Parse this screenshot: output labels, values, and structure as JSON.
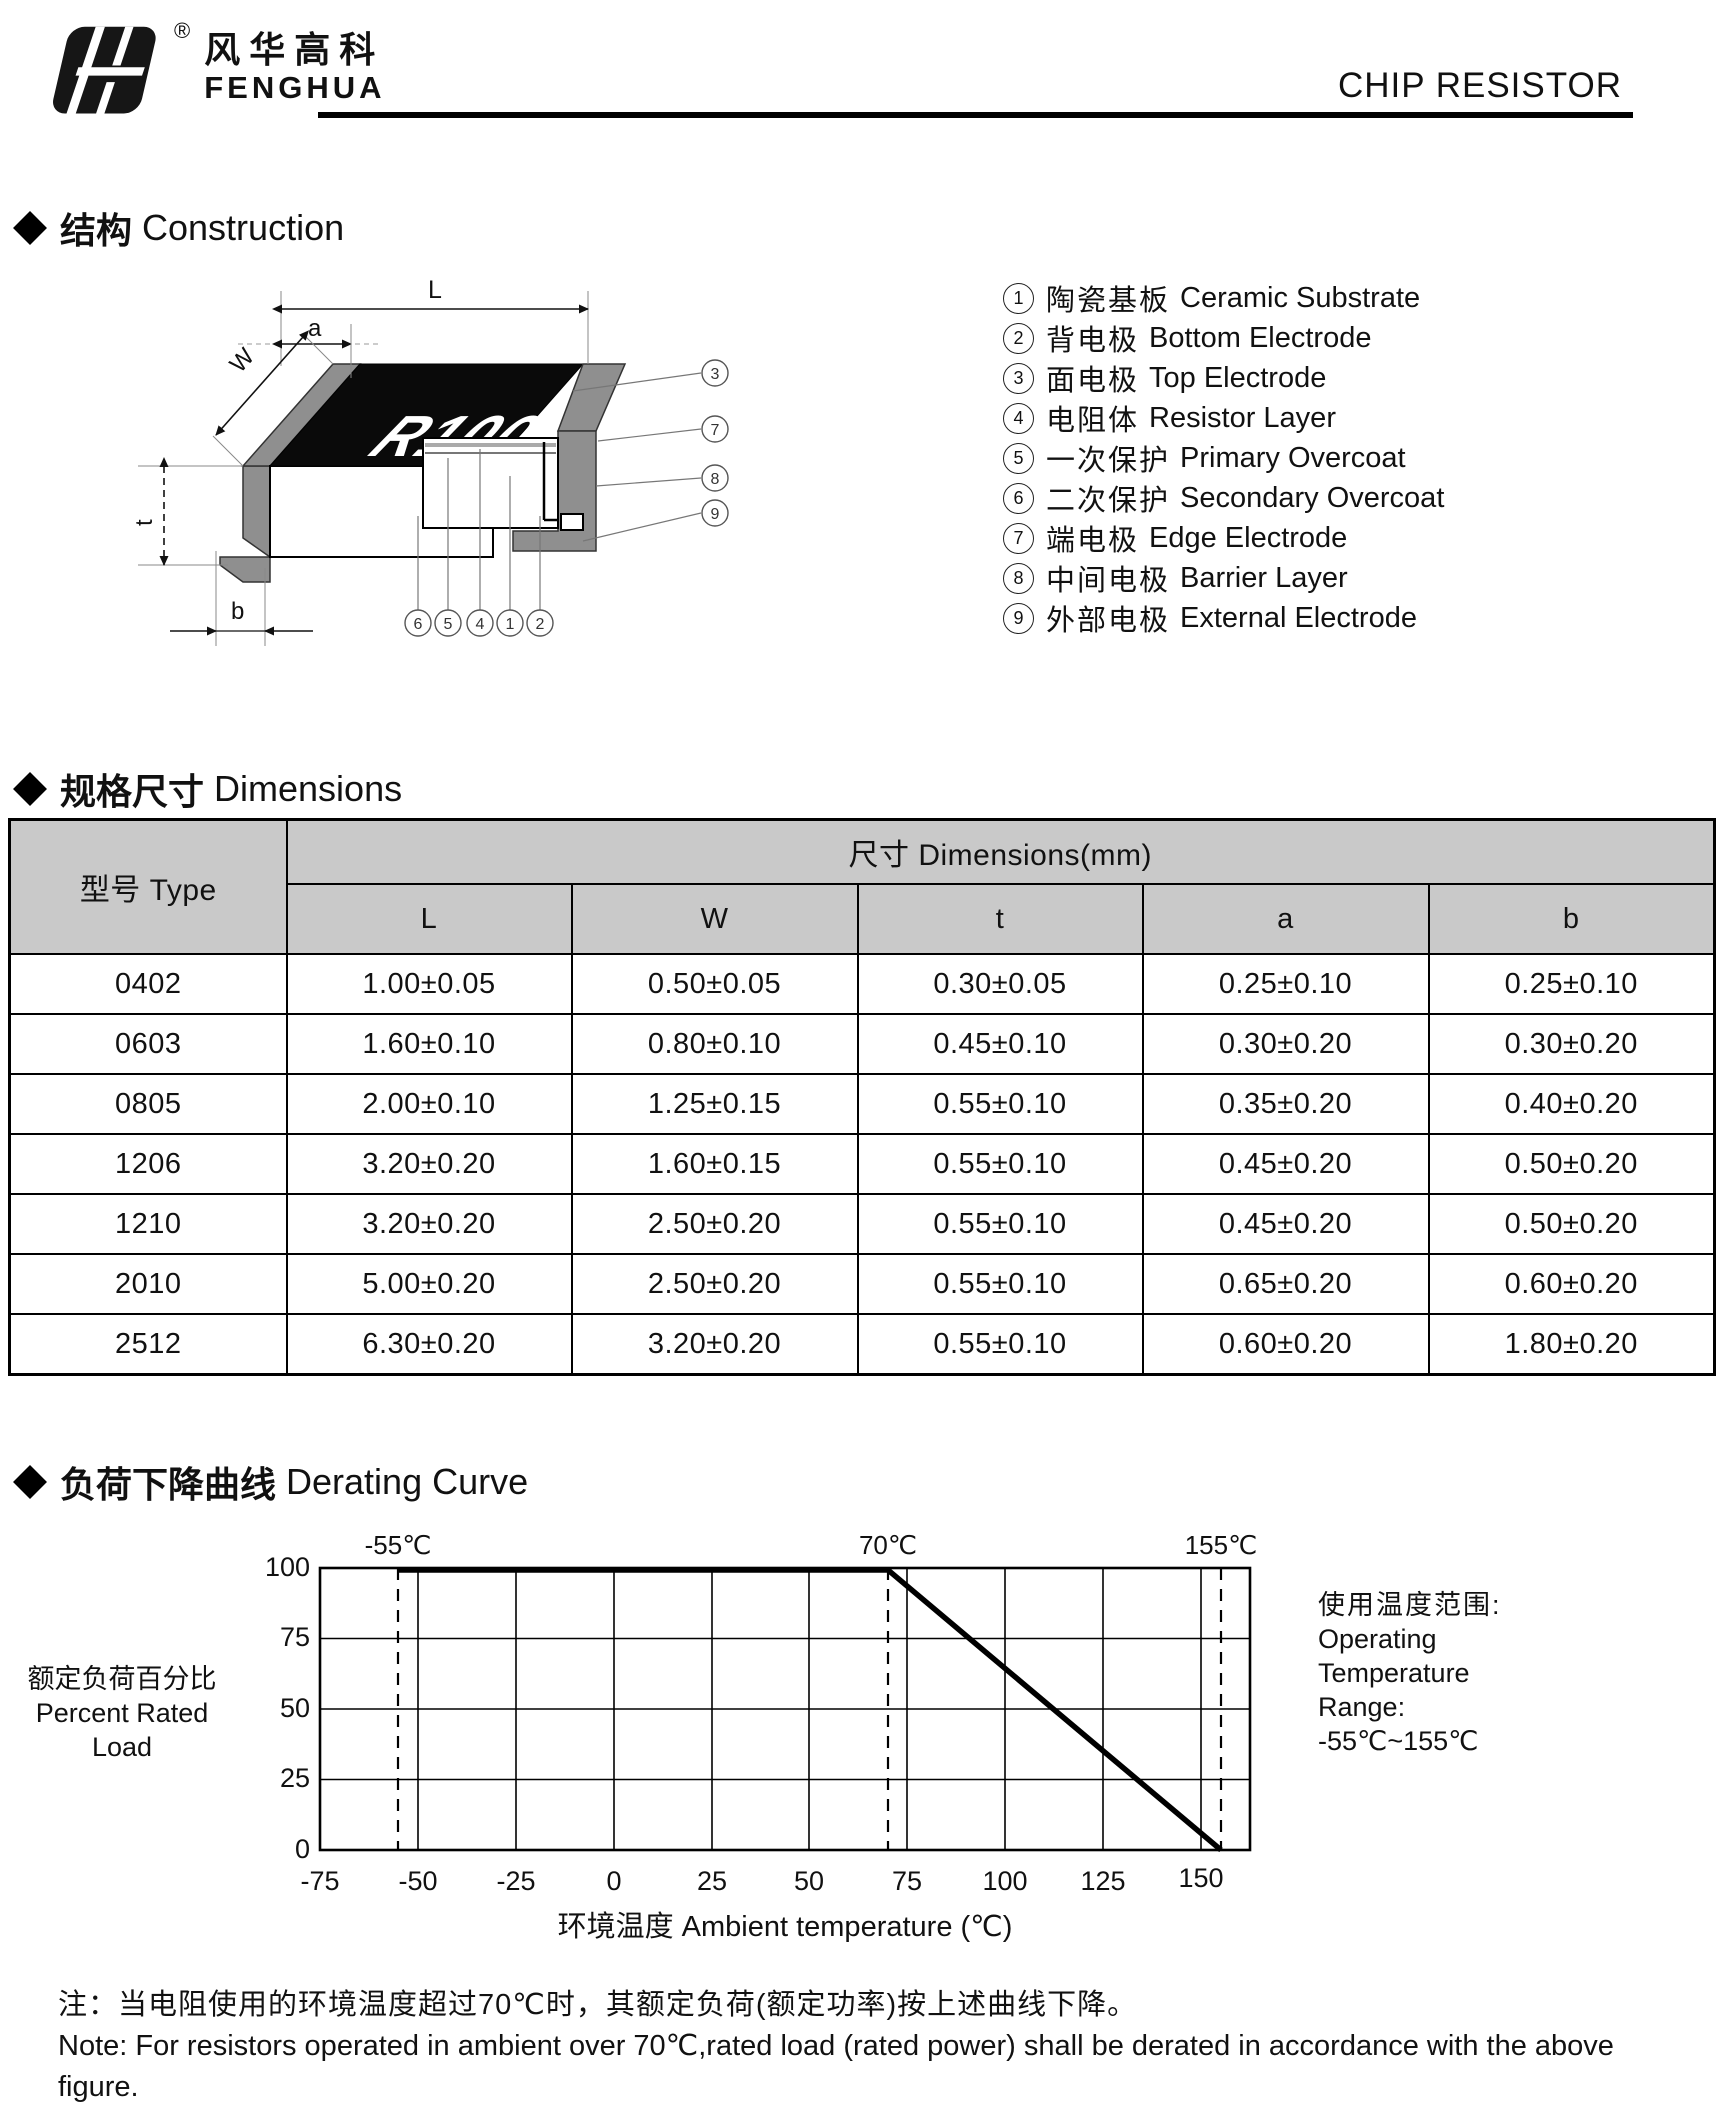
{
  "header": {
    "brand_zh": "风华高科",
    "brand_en": "FENGHUA",
    "registered": "®",
    "doc_title": "CHIP RESISTOR"
  },
  "construction": {
    "title_zh": "结构",
    "title_en": "Construction",
    "chip_marking": "R100",
    "dims": {
      "L": "L",
      "a": "a",
      "W": "W",
      "t": "t",
      "b": "b"
    },
    "legend": [
      {
        "num": "1",
        "zh": "陶瓷基板",
        "en": "Ceramic Substrate"
      },
      {
        "num": "2",
        "zh": "背电极",
        "en": "Bottom Electrode"
      },
      {
        "num": "3",
        "zh": "面电极",
        "en": "Top Electrode"
      },
      {
        "num": "4",
        "zh": "电阻体",
        "en": "Resistor Layer"
      },
      {
        "num": "5",
        "zh": "一次保护",
        "en": "Primary Overcoat"
      },
      {
        "num": "6",
        "zh": "二次保护",
        "en": "Secondary Overcoat"
      },
      {
        "num": "7",
        "zh": "端电极",
        "en": "Edge Electrode"
      },
      {
        "num": "8",
        "zh": "中间电极",
        "en": "Barrier Layer"
      },
      {
        "num": "9",
        "zh": "外部电极",
        "en": "External Electrode"
      }
    ],
    "callouts_right": [
      "3",
      "7",
      "8",
      "9"
    ],
    "callouts_bottom": [
      "6",
      "5",
      "4",
      "1",
      "2"
    ]
  },
  "dimensions_table": {
    "title_zh": "规格尺寸",
    "title_en": "Dimensions",
    "col_type": "型号 Type",
    "col_group": "尺寸 Dimensions(mm)",
    "sub_cols": [
      "L",
      "W",
      "t",
      "a",
      "b"
    ],
    "rows": [
      {
        "type": "0402",
        "values": [
          "1.00±0.05",
          "0.50±0.05",
          "0.30±0.05",
          "0.25±0.10",
          "0.25±0.10"
        ]
      },
      {
        "type": "0603",
        "values": [
          "1.60±0.10",
          "0.80±0.10",
          "0.45±0.10",
          "0.30±0.20",
          "0.30±0.20"
        ]
      },
      {
        "type": "0805",
        "values": [
          "2.00±0.10",
          "1.25±0.15",
          "0.55±0.10",
          "0.35±0.20",
          "0.40±0.20"
        ]
      },
      {
        "type": "1206",
        "values": [
          "3.20±0.20",
          "1.60±0.15",
          "0.55±0.10",
          "0.45±0.20",
          "0.50±0.20"
        ]
      },
      {
        "type": "1210",
        "values": [
          "3.20±0.20",
          "2.50±0.20",
          "0.55±0.10",
          "0.45±0.20",
          "0.50±0.20"
        ]
      },
      {
        "type": "2010",
        "values": [
          "5.00±0.20",
          "2.50±0.20",
          "0.55±0.10",
          "0.65±0.20",
          "0.60±0.20"
        ]
      },
      {
        "type": "2512",
        "values": [
          "6.30±0.20",
          "3.20±0.20",
          "0.55±0.10",
          "0.60±0.20",
          "1.80±0.20"
        ]
      }
    ]
  },
  "derating": {
    "title_zh": "负荷下降曲线",
    "title_en": "Derating Curve",
    "ylabel_zh": "额定负荷百分比",
    "ylabel_en": "Percent Rated Load",
    "xlabel": "环境温度 Ambient temperature (℃)",
    "marker_labels": [
      "-55℃",
      "70℃",
      "155℃"
    ],
    "y_ticks": [
      "100",
      "75",
      "50",
      "25",
      "0"
    ],
    "x_ticks": [
      "-75",
      "-50",
      "-25",
      "0",
      "25",
      "50",
      "75",
      "100",
      "125",
      "150"
    ],
    "range_note": [
      "使用温度范围:",
      "Operating",
      "Temperature",
      "Range:",
      "-55℃~155℃"
    ]
  },
  "chart_data": {
    "type": "line",
    "title": "负荷下降曲线 Derating Curve",
    "xlabel": "环境温度 Ambient temperature (℃)",
    "ylabel": "额定负荷百分比 Percent Rated Load",
    "x": [
      -55,
      70,
      155
    ],
    "y": [
      100,
      100,
      0
    ],
    "xlim": [
      -75,
      162.5
    ],
    "ylim": [
      0,
      100
    ],
    "x_tick_values": [
      -75,
      -50,
      -25,
      0,
      25,
      50,
      75,
      100,
      125,
      150
    ],
    "y_tick_values": [
      0,
      25,
      50,
      75,
      100
    ],
    "dashed_vertical_markers": [
      -55,
      70,
      155
    ],
    "grid": true,
    "legend_position": "none"
  },
  "footnote": {
    "zh": "注：当电阻使用的环境温度超过70℃时，其额定负荷(额定功率)按上述曲线下降。",
    "en": "Note: For resistors operated in ambient over 70℃,rated  load (rated power) shall be derated in accordance with the above figure."
  }
}
